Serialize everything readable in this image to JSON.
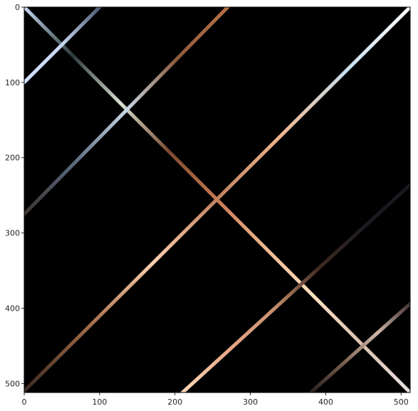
{
  "image": {
    "x_ticks": [
      "0",
      "100",
      "200",
      "300",
      "400",
      "500"
    ],
    "y_ticks": [
      "0",
      "100",
      "200",
      "300",
      "400",
      "500"
    ],
    "x_range": [
      0,
      512
    ],
    "y_range": [
      0,
      512
    ],
    "y_inverted": true,
    "background": "#000000",
    "lines": [
      {
        "x1": 0,
        "y1": 0,
        "x2": 512,
        "y2": 512,
        "colors": [
          "#c8d8f0",
          "#2a3a3a",
          "#d8e0d0",
          "#7a4a30",
          "#c87850",
          "#f0b890",
          "#ffe0c0",
          "#d8c0b0",
          "#e8e0e0"
        ]
      },
      {
        "x1": 0,
        "y1": 100,
        "x2": 100,
        "y2": 0,
        "colors": [
          "#d0e0ff",
          "#c8d8f0",
          "#4a5a70"
        ]
      },
      {
        "x1": 0,
        "y1": 275,
        "x2": 270,
        "y2": 0,
        "colors": [
          "#3a3530",
          "#5a6a80",
          "#c8d8e8",
          "#8a5a3a",
          "#b87048"
        ]
      },
      {
        "x1": 0,
        "y1": 510,
        "x2": 512,
        "y2": 0,
        "colors": [
          "#3a2a20",
          "#a06a48",
          "#ffd0b0",
          "#c08060",
          "#f0b890",
          "#c8e0f0",
          "#ffffff"
        ]
      },
      {
        "x1": 210,
        "y1": 512,
        "x2": 512,
        "y2": 236,
        "colors": [
          "#ffd8b8",
          "#e8a888",
          "#c89070",
          "#402a20",
          "#1a1a20",
          "#181820"
        ]
      },
      {
        "x1": 380,
        "y1": 512,
        "x2": 512,
        "y2": 394,
        "colors": [
          "#2a2020",
          "#7a6050",
          "#d0b8a8",
          "#403030"
        ]
      }
    ]
  }
}
